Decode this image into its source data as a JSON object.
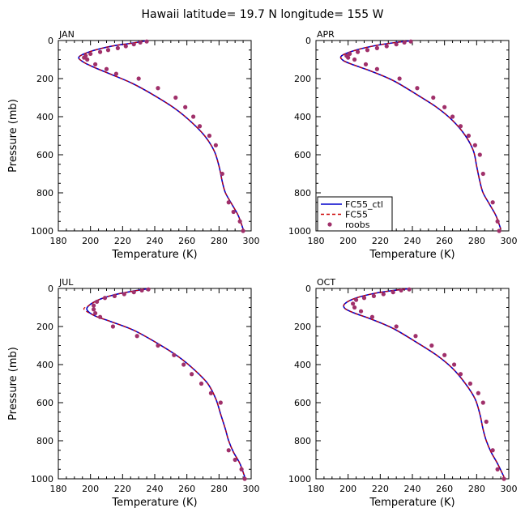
{
  "figure": {
    "title": "Hawaii   latitude= 19.7 N longitude= 155 W"
  },
  "colors": {
    "fc55_ctl": "#0000cc",
    "fc55": "#cc0000",
    "roobs": "#a0306a",
    "axis": "#000000"
  },
  "legend": {
    "panel": "APR",
    "items": [
      {
        "label": "FC55_ctl",
        "style": "solid-line",
        "color": "#0000cc"
      },
      {
        "label": "FC55",
        "style": "dashed-line",
        "color": "#cc0000"
      },
      {
        "label": "roobs",
        "style": "dot",
        "color": "#a0306a"
      }
    ]
  },
  "chart_data": [
    {
      "type": "line",
      "panel": "JAN",
      "xlabel": "Temperature (K)",
      "ylabel": "Pressure (mb)",
      "xlim": [
        180,
        300
      ],
      "ylim": [
        1000,
        0
      ],
      "xticks": [
        "180",
        "200",
        "220",
        "240",
        "260",
        "280",
        "300"
      ],
      "yticks": [
        "0",
        "200",
        "400",
        "600",
        "800",
        "1000"
      ],
      "series": [
        {
          "name": "FC55_ctl",
          "x": [
            236,
            225,
            213,
            201,
            193,
            195,
            202,
            212,
            226,
            240,
            253,
            263,
            271,
            277,
            280,
            282,
            284,
            288,
            292,
            295
          ],
          "y": [
            0,
            15,
            30,
            55,
            85,
            110,
            140,
            175,
            225,
            290,
            360,
            430,
            500,
            580,
            660,
            740,
            800,
            860,
            920,
            990
          ]
        },
        {
          "name": "FC55",
          "x": [
            236,
            225,
            213,
            201,
            193,
            195,
            202,
            212,
            226,
            240,
            253,
            263,
            271,
            277,
            280,
            282,
            284,
            288,
            292,
            295
          ],
          "y": [
            0,
            15,
            30,
            55,
            85,
            110,
            140,
            175,
            225,
            290,
            360,
            430,
            500,
            580,
            660,
            740,
            800,
            860,
            920,
            990
          ]
        },
        {
          "name": "roobs",
          "x": [
            235,
            231,
            227,
            222,
            217,
            211,
            206,
            200,
            197,
            196,
            198,
            203,
            210,
            216,
            230,
            242,
            253,
            259,
            264,
            268,
            274,
            278,
            282,
            286,
            289,
            293,
            295
          ],
          "y": [
            5,
            10,
            20,
            30,
            40,
            50,
            60,
            70,
            80,
            90,
            100,
            125,
            150,
            175,
            200,
            250,
            300,
            350,
            400,
            450,
            500,
            550,
            700,
            850,
            900,
            950,
            1000
          ]
        }
      ]
    },
    {
      "type": "line",
      "panel": "APR",
      "xlabel": "Temperature (K)",
      "ylabel": "",
      "xlim": [
        180,
        300
      ],
      "ylim": [
        1000,
        0
      ],
      "xticks": [
        "180",
        "200",
        "220",
        "240",
        "260",
        "280",
        "300"
      ],
      "yticks": [
        "0",
        "200",
        "400",
        "600",
        "800",
        "1000"
      ],
      "series": [
        {
          "name": "FC55_ctl",
          "x": [
            240,
            230,
            218,
            205,
            196,
            197,
            204,
            214,
            228,
            242,
            255,
            265,
            273,
            278,
            280,
            282,
            284,
            288,
            292,
            295
          ],
          "y": [
            0,
            10,
            25,
            50,
            80,
            105,
            130,
            160,
            210,
            280,
            350,
            420,
            500,
            580,
            660,
            740,
            800,
            860,
            920,
            990
          ]
        },
        {
          "name": "FC55",
          "x": [
            240,
            230,
            218,
            205,
            196,
            197,
            204,
            214,
            228,
            242,
            255,
            265,
            273,
            278,
            280,
            282,
            284,
            288,
            292,
            295
          ],
          "y": [
            0,
            10,
            25,
            50,
            80,
            105,
            130,
            160,
            210,
            280,
            350,
            420,
            500,
            580,
            660,
            740,
            800,
            860,
            920,
            990
          ]
        },
        {
          "name": "roobs",
          "x": [
            239,
            235,
            230,
            224,
            218,
            212,
            206,
            201,
            199,
            200,
            204,
            211,
            218,
            232,
            243,
            253,
            260,
            265,
            270,
            275,
            279,
            282,
            284,
            290,
            293,
            294
          ],
          "y": [
            5,
            10,
            20,
            30,
            40,
            50,
            60,
            70,
            80,
            90,
            100,
            125,
            150,
            200,
            250,
            300,
            350,
            400,
            450,
            500,
            550,
            600,
            700,
            850,
            950,
            1000
          ]
        }
      ]
    },
    {
      "type": "line",
      "panel": "JUL",
      "xlabel": "Temperature (K)",
      "ylabel": "Pressure (mb)",
      "xlim": [
        180,
        300
      ],
      "ylim": [
        1000,
        0
      ],
      "xticks": [
        "180",
        "200",
        "220",
        "240",
        "260",
        "280",
        "300"
      ],
      "yticks": [
        "0",
        "200",
        "400",
        "600",
        "800",
        "1000"
      ],
      "series": [
        {
          "name": "FC55_ctl",
          "x": [
            237,
            226,
            214,
            205,
            199,
            198,
            203,
            213,
            227,
            242,
            255,
            265,
            273,
            278,
            281,
            284,
            286,
            289,
            293,
            296
          ],
          "y": [
            0,
            15,
            35,
            60,
            90,
            115,
            145,
            175,
            220,
            290,
            360,
            430,
            500,
            580,
            660,
            740,
            800,
            860,
            920,
            990
          ]
        },
        {
          "name": "FC55",
          "x": [
            237,
            226,
            214,
            205,
            199,
            196,
            203,
            213,
            227,
            242,
            255,
            265,
            273,
            278,
            281,
            284,
            286,
            289,
            293,
            296
          ],
          "y": [
            0,
            15,
            35,
            60,
            90,
            110,
            145,
            175,
            220,
            290,
            360,
            430,
            500,
            580,
            660,
            740,
            800,
            860,
            920,
            990
          ]
        },
        {
          "name": "roobs",
          "x": [
            236,
            232,
            227,
            221,
            215,
            209,
            204,
            202,
            202,
            203,
            206,
            214,
            229,
            242,
            252,
            258,
            263,
            269,
            275,
            281,
            286,
            290,
            294,
            296
          ],
          "y": [
            5,
            10,
            20,
            30,
            40,
            50,
            70,
            90,
            110,
            130,
            150,
            200,
            250,
            300,
            350,
            400,
            450,
            500,
            550,
            600,
            850,
            900,
            950,
            1000
          ]
        }
      ]
    },
    {
      "type": "line",
      "panel": "OCT",
      "xlabel": "Temperature (K)",
      "ylabel": "",
      "xlim": [
        180,
        300
      ],
      "ylim": [
        1000,
        0
      ],
      "xticks": [
        "180",
        "200",
        "220",
        "240",
        "260",
        "280",
        "300"
      ],
      "yticks": [
        "0",
        "200",
        "400",
        "600",
        "800",
        "1000"
      ],
      "series": [
        {
          "name": "FC55_ctl",
          "x": [
            239,
            229,
            217,
            205,
            198,
            198,
            204,
            214,
            228,
            242,
            255,
            265,
            273,
            279,
            282,
            284,
            286,
            289,
            293,
            297
          ],
          "y": [
            0,
            10,
            25,
            50,
            80,
            105,
            130,
            160,
            210,
            280,
            350,
            420,
            500,
            580,
            660,
            740,
            800,
            860,
            920,
            990
          ]
        },
        {
          "name": "FC55",
          "x": [
            239,
            229,
            217,
            205,
            198,
            198,
            204,
            214,
            228,
            242,
            255,
            265,
            273,
            279,
            282,
            284,
            286,
            289,
            293,
            297
          ],
          "y": [
            0,
            10,
            25,
            50,
            80,
            105,
            130,
            160,
            210,
            280,
            350,
            420,
            500,
            580,
            660,
            740,
            800,
            860,
            920,
            990
          ]
        },
        {
          "name": "roobs",
          "x": [
            238,
            233,
            228,
            222,
            216,
            210,
            205,
            203,
            204,
            208,
            215,
            230,
            242,
            252,
            260,
            266,
            270,
            276,
            281,
            284,
            286,
            290,
            293,
            297
          ],
          "y": [
            5,
            10,
            20,
            30,
            40,
            50,
            60,
            80,
            100,
            120,
            150,
            200,
            250,
            300,
            350,
            400,
            450,
            500,
            550,
            600,
            700,
            850,
            950,
            1000
          ]
        }
      ]
    }
  ]
}
